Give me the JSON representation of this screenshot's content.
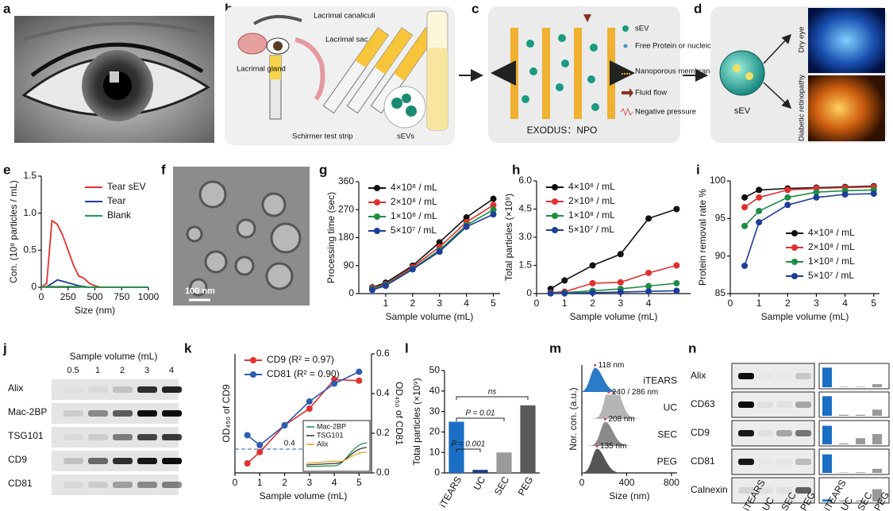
{
  "panel_labels": [
    "a",
    "b",
    "c",
    "d",
    "e",
    "f",
    "g",
    "h",
    "i",
    "j",
    "k",
    "l",
    "m",
    "n"
  ],
  "diagram_b": {
    "canaliculi": "Lacrimal canaliculi",
    "sac": "Lacrimal sac",
    "gland": "Lacrimal gland",
    "strip": "Schirmer test strip",
    "sevs": "sEVs"
  },
  "diagram_c": {
    "legend": [
      "sEV",
      "Free Protein or nucleic acid",
      "Nanoporous membrane",
      "Fluid flow",
      "Negative pressure"
    ],
    "title": "EXODUS：NPO"
  },
  "diagram_d": {
    "label": "sEV",
    "dry": "Dry eye",
    "retina": "Diabetic retinopathy"
  },
  "image_f": {
    "scale_bar": "100 nm"
  },
  "blot_j": {
    "header": "Sample volume (mL)",
    "lanes": [
      "0.5",
      "1",
      "2",
      "3",
      "4"
    ],
    "rows": [
      "Alix",
      "Mac-2BP",
      "TSG101",
      "CD9",
      "CD81"
    ]
  },
  "blot_n": {
    "rows": [
      "Alix",
      "CD63",
      "CD9",
      "CD81",
      "Calnexin"
    ],
    "lanes": [
      "iTEARS",
      "UC",
      "SEC",
      "PEG"
    ]
  },
  "chart_data": [
    {
      "type": "line",
      "xlabel": "Size (nm)",
      "ylabel": "Con. (10⁸ particles / mL)",
      "x": [
        0,
        50,
        100,
        150,
        200,
        250,
        300,
        350,
        400,
        450,
        500,
        550,
        600,
        700,
        800,
        900,
        1000
      ],
      "series": [
        {
          "name": "Tear sEV",
          "color": "#e0312f",
          "values": [
            0,
            0.05,
            0.9,
            0.85,
            0.7,
            0.5,
            0.3,
            0.15,
            0.12,
            0.05,
            0.02,
            0,
            0,
            0,
            0,
            0,
            0
          ]
        },
        {
          "name": "Tear",
          "color": "#1f3d99",
          "values": [
            0,
            0.01,
            0.05,
            0.1,
            0.08,
            0.06,
            0.04,
            0.02,
            0.01,
            0,
            0,
            0,
            0,
            0,
            0,
            0,
            0
          ]
        },
        {
          "name": "Blank",
          "color": "#1e9c45",
          "values": [
            0,
            0.01,
            0.01,
            0.01,
            0.01,
            0.01,
            0.01,
            0.01,
            0,
            0,
            0,
            0,
            0,
            0,
            0,
            0,
            0
          ]
        }
      ],
      "xlim": [
        0,
        1000
      ],
      "ylim": [
        0,
        1.5
      ],
      "xticks": [
        0,
        250,
        500,
        750,
        1000
      ],
      "yticks": [
        0,
        0.5,
        {
          "value": 1,
          "label": "1.0"
        },
        1.5
      ],
      "legend": "upper right"
    },
    {
      "type": "line",
      "markers": true,
      "xlabel": "Sample volume (mL)",
      "ylabel": "Processing time (sec)",
      "x": [
        0.5,
        1,
        2,
        3,
        4,
        5
      ],
      "series": [
        {
          "name": "4×10⁸ / mL",
          "color": "#111111",
          "values": [
            20,
            35,
            90,
            165,
            245,
            305
          ]
        },
        {
          "name": "2×10⁸ / mL",
          "color": "#e0312f",
          "values": [
            18,
            30,
            85,
            150,
            230,
            285
          ]
        },
        {
          "name": "1×10⁸ / mL",
          "color": "#1e8c45",
          "values": [
            15,
            28,
            80,
            140,
            220,
            270
          ]
        },
        {
          "name": "5×10⁷ / mL",
          "color": "#1f3d99",
          "values": [
            12,
            25,
            78,
            135,
            215,
            255
          ]
        }
      ],
      "xlim": [
        0,
        5.25
      ],
      "ylim": [
        0,
        360
      ],
      "xticks": [
        1,
        2,
        3,
        4,
        5
      ],
      "yticks": [
        0,
        90,
        180,
        270,
        360
      ],
      "legend": "upper left"
    },
    {
      "type": "line",
      "markers": true,
      "xlabel": "Sample volume (mL)",
      "ylabel": "Total particles (×10⁹)",
      "x": [
        0.5,
        1,
        2,
        3,
        4,
        5
      ],
      "series": [
        {
          "name": "4×10⁸ / mL",
          "color": "#111111",
          "values": [
            0.25,
            0.7,
            1.5,
            2.1,
            4.0,
            4.5
          ]
        },
        {
          "name": "2×10⁸ / mL",
          "color": "#e0312f",
          "values": [
            0.05,
            0.1,
            0.55,
            0.6,
            1.1,
            1.5
          ]
        },
        {
          "name": "1×10⁸ / mL",
          "color": "#1e8c45",
          "values": [
            0.02,
            0.05,
            0.15,
            0.25,
            0.4,
            0.55
          ]
        },
        {
          "name": "5×10⁷ / mL",
          "color": "#1f3d99",
          "values": [
            0.01,
            0.02,
            0.05,
            0.08,
            0.12,
            0.15
          ]
        }
      ],
      "xlim": [
        0,
        5.5
      ],
      "ylim": [
        0,
        6
      ],
      "xticks": [
        0,
        1,
        2,
        3,
        4
      ],
      "yticks": [
        0,
        1.5,
        {
          "value": 3,
          "label": "3.0"
        },
        4.5,
        {
          "value": 6,
          "label": "6.0"
        }
      ],
      "legend": "upper left"
    },
    {
      "type": "line",
      "markers": true,
      "xlabel": "Sample volume (mL)",
      "ylabel": "Protein removal rate %",
      "x": [
        0.5,
        1,
        2,
        3,
        4,
        5
      ],
      "series": [
        {
          "name": "4×10⁸ / mL",
          "color": "#111111",
          "values": [
            97.8,
            98.8,
            99.0,
            99.1,
            99.2,
            99.3
          ]
        },
        {
          "name": "2×10⁸ / mL",
          "color": "#e0312f",
          "values": [
            96.5,
            97.8,
            98.8,
            99.0,
            99.1,
            99.2
          ]
        },
        {
          "name": "1×10⁸ / mL",
          "color": "#1e8c45",
          "values": [
            94,
            96,
            97.8,
            98.5,
            98.7,
            98.8
          ]
        },
        {
          "name": "5×10⁷ / mL",
          "color": "#1f3d99",
          "values": [
            88.7,
            94.5,
            96.8,
            97.8,
            98.2,
            98.3
          ]
        }
      ],
      "xlim": [
        0,
        5.2
      ],
      "ylim": [
        85,
        100
      ],
      "xticks": [
        0,
        1,
        2,
        3,
        4,
        5
      ],
      "yticks": [
        85,
        90,
        95,
        100
      ],
      "legend": "lower right"
    },
    {
      "type": "line",
      "markers": true,
      "xlabel": "Sample volume (mL)",
      "ylabel": "OD₄₅₀ of CD9",
      "y2label": "OD₄₅₀ of CD81",
      "x": [
        0.5,
        1,
        2,
        3,
        4,
        5
      ],
      "series": [
        {
          "name": "CD9 (R² = 0.97)",
          "color": "#e0312f",
          "values": [
            0.16,
            0.35,
            0.8,
            1.08,
            1.57,
            1.55
          ]
        },
        {
          "name": "CD81 (R² = 0.90)",
          "color": "#2a5db0",
          "axis": "y2",
          "values": [
            0.19,
            0.14,
            0.24,
            0.36,
            0.45,
            0.51
          ]
        }
      ],
      "xlim": [
        0,
        5.5
      ],
      "ylim": [
        0,
        2
      ],
      "y2lim": [
        0,
        0.6
      ],
      "xticks": [
        0,
        1,
        2,
        3,
        4,
        5
      ],
      "y2ticks": [
        {
          "value": 0,
          "label": "0.0"
        },
        0.2,
        0.4,
        0.6
      ],
      "hlines": [
        {
          "value": 0.4,
          "label": "0.4"
        }
      ],
      "inset": {
        "names": [
          "Mac-2BP",
          "TSG101",
          "Alix"
        ],
        "colors": [
          "#1e8c45",
          "#333333",
          "#e8a020"
        ]
      },
      "legend": "upper left"
    },
    {
      "type": "bar",
      "ylabel": "Total particles (×10⁹)",
      "categories": [
        "iTEARS",
        "UC",
        "SEC",
        "PEG"
      ],
      "values": [
        25,
        1.5,
        10,
        33
      ],
      "colors": [
        "#1a6fc4",
        "#1a3f8a",
        "#9a9a9a",
        "#5a5a5a"
      ],
      "ylim": [
        0,
        50
      ],
      "yticks": [
        0,
        10,
        20,
        30,
        40,
        50
      ],
      "annotations": [
        "P = 0.001",
        "P = 0.01",
        "ns"
      ]
    },
    {
      "type": "density",
      "xlabel": "Size (nm)",
      "ylabel": "Nor. con. (a.u.)",
      "categories": [
        "iTEARS",
        "UC",
        "SEC",
        "PEG"
      ],
      "colors": [
        "#2a7bc8",
        "#b5b5b5",
        "#8a8a8a",
        "#555555"
      ],
      "peaks": [
        [
          118
        ],
        [
          240,
          286
        ],
        [
          208
        ],
        [
          135
        ]
      ],
      "peak_labels": [
        "118 nm",
        "240 / 286 nm",
        "208 nm",
        "135 nm"
      ],
      "xlim": [
        0,
        850
      ],
      "xticks": [
        0,
        400,
        800
      ]
    }
  ]
}
